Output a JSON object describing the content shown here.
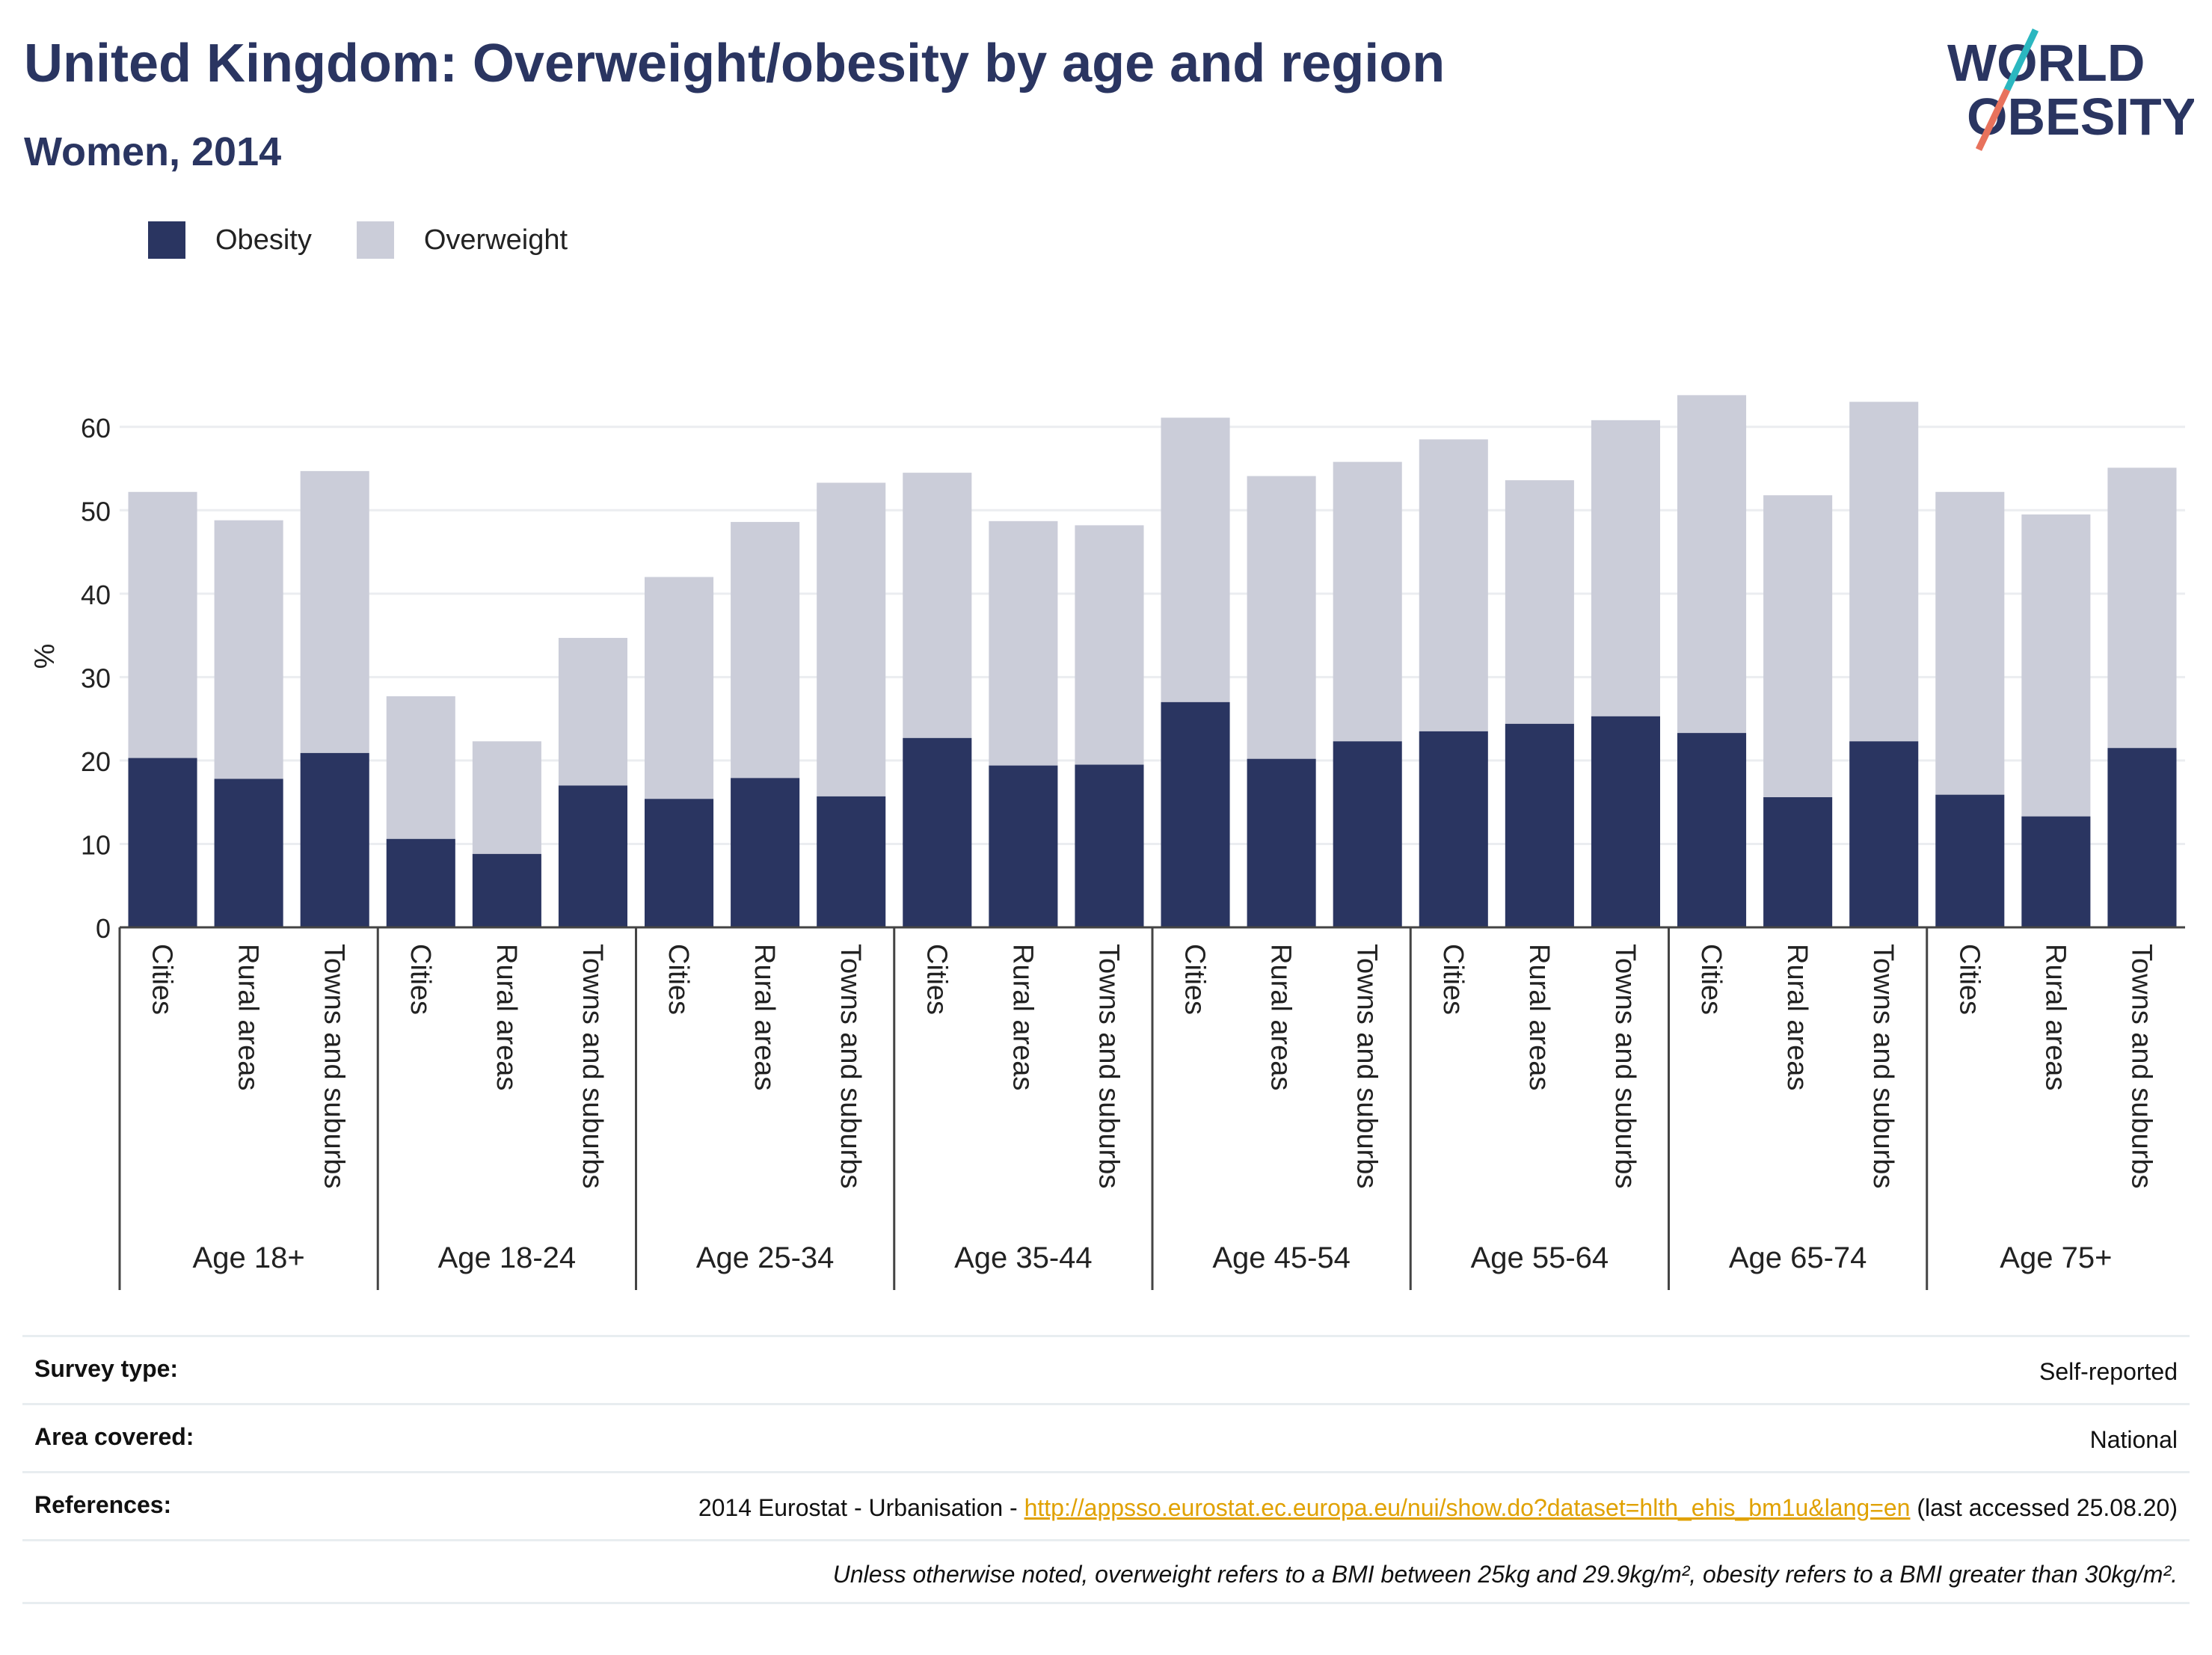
{
  "header": {
    "title": "United Kingdom: Overweight/obesity by age and region",
    "subtitle": "Women, 2014"
  },
  "logo": {
    "line1": "WORLD",
    "line2": "OBESITY",
    "colors": {
      "text": "#2a3561",
      "slash_teal": "#2bb7c0",
      "slash_coral": "#e8725c"
    }
  },
  "legend": {
    "items": [
      {
        "label": "Obesity",
        "color": "#2a3561"
      },
      {
        "label": "Overweight",
        "color": "#cbcdd9"
      }
    ]
  },
  "chart_data": {
    "type": "bar",
    "stacked": true,
    "ylabel": "%",
    "ylim": [
      0,
      65
    ],
    "yticks": [
      0,
      10,
      20,
      30,
      40,
      50,
      60
    ],
    "grid": true,
    "legend_position": "top-left",
    "groups": [
      "Age 18+",
      "Age 18-24",
      "Age 25-34",
      "Age 35-44",
      "Age 45-54",
      "Age 55-64",
      "Age 65-74",
      "Age 75+"
    ],
    "subcategories": [
      "Cities",
      "Rural areas",
      "Towns and suburbs"
    ],
    "series": [
      {
        "name": "Obesity",
        "color": "#2a3561",
        "values": [
          20.3,
          17.8,
          20.9,
          10.6,
          8.8,
          17.0,
          15.4,
          17.9,
          15.7,
          22.7,
          19.4,
          19.5,
          27.0,
          20.2,
          22.3,
          23.5,
          24.4,
          25.3,
          23.3,
          15.6,
          22.3,
          15.9,
          13.3,
          21.5
        ]
      },
      {
        "name": "Overweight",
        "color": "#cbcdd9",
        "values": [
          31.9,
          31.0,
          33.8,
          17.1,
          13.5,
          17.7,
          26.6,
          30.7,
          37.6,
          31.8,
          29.3,
          28.7,
          34.1,
          33.9,
          33.5,
          35.0,
          29.2,
          35.5,
          40.5,
          36.2,
          40.7,
          36.3,
          36.2,
          33.6
        ]
      }
    ]
  },
  "info": {
    "survey_label": "Survey type:",
    "survey_value": "Self-reported",
    "area_label": "Area covered:",
    "area_value": "National",
    "references_label": "References:",
    "references_prefix": "2014 Eurostat - Urbanisation - ",
    "references_link": "http://appsso.eurostat.ec.europa.eu/nui/show.do?dataset=hlth_ehis_bm1u&lang=en",
    "references_suffix": " (last accessed 25.08.20)",
    "note": "Unless otherwise noted, overweight refers to a BMI between 25kg and 29.9kg/m², obesity refers to a BMI greater than 30kg/m²."
  }
}
